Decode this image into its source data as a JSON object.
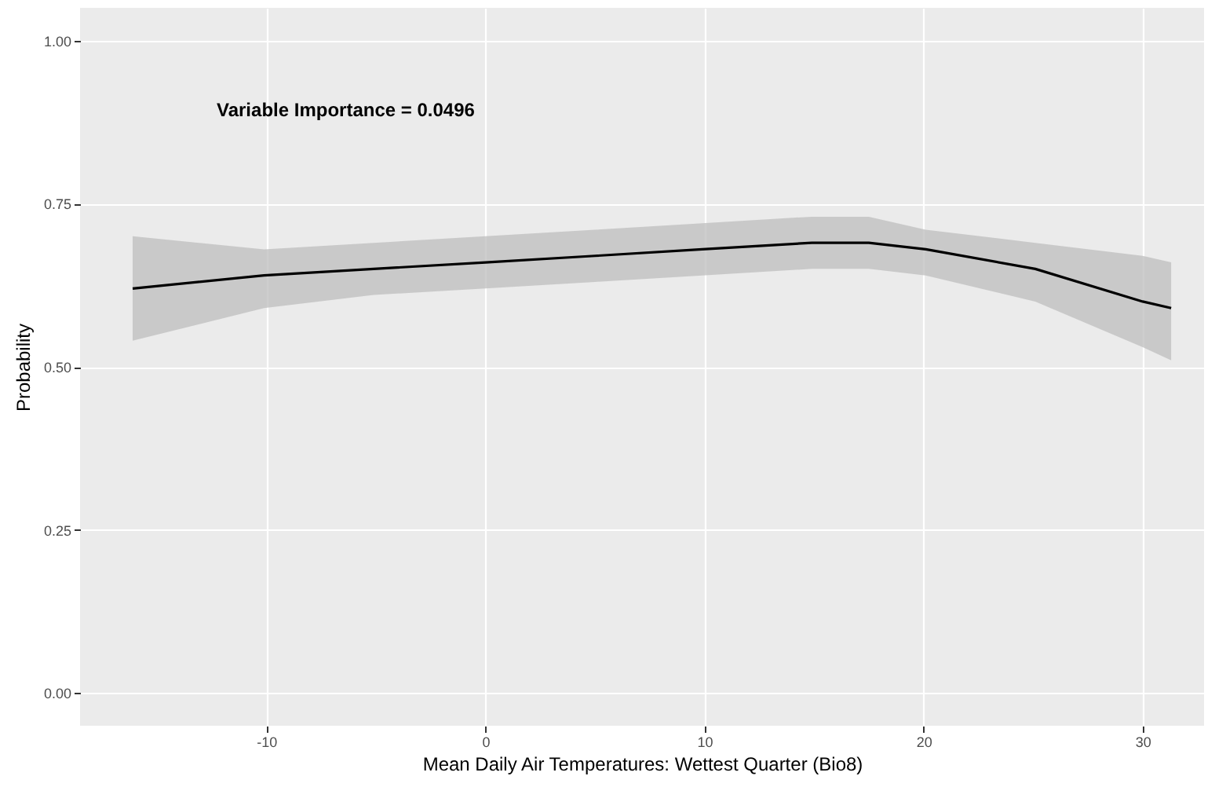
{
  "chart_data": {
    "type": "line",
    "xlabel": "Mean Daily Air Temperatures: Wettest Quarter (Bio8)",
    "ylabel": "Probability",
    "annotations": [
      "Variable Importance = 0.0496"
    ],
    "x": [
      -16.1,
      -10.1,
      -5.1,
      0,
      5,
      9.9,
      14.9,
      17.5,
      20.1,
      25.1,
      30,
      31.3
    ],
    "series": [
      {
        "color": "#000000",
        "values": [
          0.62,
          0.64,
          0.65,
          0.66,
          0.67,
          0.68,
          0.69,
          0.69,
          0.68,
          0.65,
          0.6,
          0.59
        ],
        "lower": [
          0.54,
          0.59,
          0.61,
          0.62,
          0.63,
          0.64,
          0.65,
          0.65,
          0.64,
          0.6,
          0.53,
          0.51
        ],
        "upper": [
          0.7,
          0.68,
          0.69,
          0.7,
          0.71,
          0.72,
          0.73,
          0.73,
          0.71,
          0.69,
          0.67,
          0.66
        ]
      }
    ],
    "xlim": [
      -18.5,
      32.8
    ],
    "xticks": [
      -10,
      0,
      10,
      20,
      30
    ],
    "ylim": [
      -0.05,
      1.05
    ],
    "yticks": [
      {
        "value": 0,
        "label": "0.00"
      },
      {
        "value": 0.25,
        "label": "0.25"
      },
      {
        "value": 0.5,
        "label": "0.50"
      },
      {
        "value": 0.75,
        "label": "0.75"
      },
      {
        "value": 1,
        "label": "1.00"
      }
    ],
    "grid": true
  }
}
